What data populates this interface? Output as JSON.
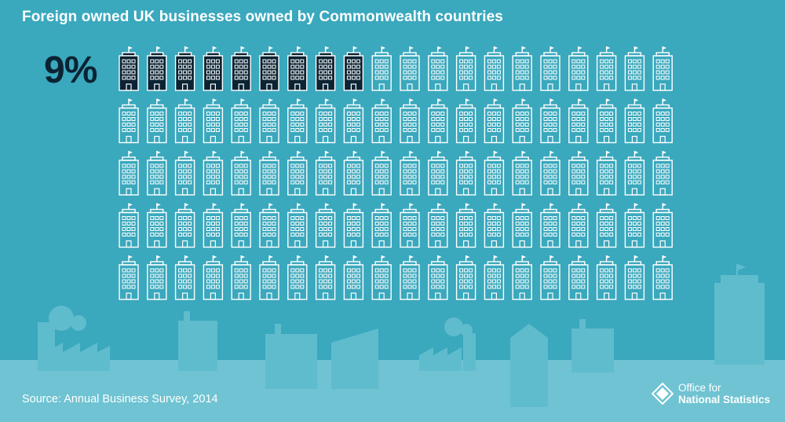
{
  "title": "Foreign owned UK businesses owned by Commonwealth countries",
  "headline_value": "9%",
  "source": "Source: Annual Business Survey, 2014",
  "logo": {
    "line1": "Office for",
    "line2": "National Statistics"
  },
  "colors": {
    "background": "#3aa8bd",
    "filled_icon": "#0b2333",
    "empty_icon_outline": "#ffffff",
    "skyline": "#5fbccd",
    "ground": "#6fc3d2"
  },
  "chart_data": {
    "type": "icon-array",
    "icon": "office-building-icon",
    "total_icons": 100,
    "highlighted_icons": 9,
    "value_percent": 9,
    "title": "Foreign owned UK businesses owned by Commonwealth countries"
  }
}
